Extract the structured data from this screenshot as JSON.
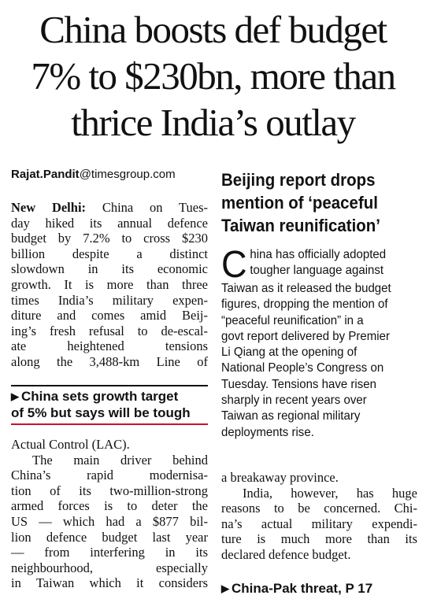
{
  "headline": {
    "line1": "China boosts def budget",
    "line2": "7% to $230bn, more than",
    "line3": "thrice India’s outlay"
  },
  "byline": {
    "name": "Rajat.Pandit",
    "domain": "@timesgroup.com"
  },
  "story": {
    "dateline": "New Delhi:",
    "col1_lines": [
      " China on Tues-",
      "day hiked its annual defence",
      "budget by 7.2% to cross $230",
      "billion  despite  a  distinct",
      "slowdown  in  its  economic",
      "growth. It is more than three",
      "times India’s military expen-",
      "diture and comes amid Beij-",
      "ing’s fresh refusal to de-escal-",
      "ate  heightened  tensions",
      "along the 3,488-km Line of"
    ],
    "col1b_lines": [
      "Actual Control (LAC).",
      "The main driver behind",
      "China’s rapid modernisa-",
      "tion of its two-million-strong",
      "armed forces is to deter the",
      "US — which had a $877 bil-",
      "lion defence budget last year",
      "— from interfering in its",
      "neighbourhood,   especially",
      "in Taiwan which it considers"
    ],
    "col2_lines": [
      "a breakaway province.",
      "India, however, has huge",
      "reasons to be concerned. Chi-",
      "na’s actual military expendi-",
      "ture is much more than its",
      "declared defence budget."
    ]
  },
  "crosshead": {
    "line1": "China sets growth target",
    "line2": "of 5% but says will be tough"
  },
  "sidebar": {
    "head_line1": "Beijing report drops",
    "head_line2": "mention of ‘peaceful",
    "head_line3": "Taiwan reunification’",
    "dropcap": "C",
    "lines": [
      "hina has officially adopted",
      "tougher language against",
      "Taiwan as it released the budget",
      "figures, dropping the mention of",
      "“peaceful reunification” in a",
      "govt report delivered by Premier",
      "Li Qiang at the opening of",
      "National People’s Congress on",
      "Tuesday. Tensions have risen",
      "sharply in recent years over",
      "Taiwan as regional military",
      "deployments rise."
    ]
  },
  "jump": {
    "text": "China-Pak threat, P 17"
  }
}
